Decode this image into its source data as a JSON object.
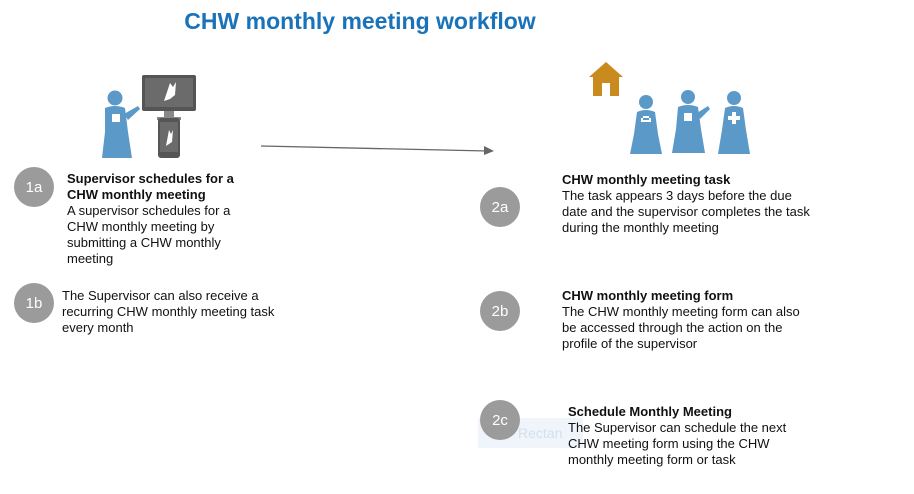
{
  "title": "CHW monthly meeting workflow",
  "steps": {
    "s1a": {
      "badge": "1a",
      "heading": "Supervisor schedules for a CHW monthly meeting",
      "text": "A supervisor schedules for a CHW monthly meeting by submitting a CHW monthly meeting"
    },
    "s1b": {
      "badge": "1b",
      "text": "The Supervisor can also receive a recurring CHW monthly meeting task every month"
    },
    "s2a": {
      "badge": "2a",
      "heading": "CHW monthly meeting task",
      "text": "The task appears 3 days before the due date and the supervisor completes the task during the monthly meeting"
    },
    "s2b": {
      "badge": "2b",
      "heading": "CHW monthly meeting form",
      "text": "The CHW monthly meeting form can also be accessed through the action on the profile of the supervisor"
    },
    "s2c": {
      "badge": "2c",
      "heading": "Schedule Monthly Meeting",
      "text": "The Supervisor can schedule the next CHW meeting form using the CHW monthly meeting form or task"
    }
  },
  "ghost_label": "Rectan",
  "icons": [
    "supervisor-person-icon",
    "computer-monitor-icon",
    "mobile-phone-icon",
    "house-icon",
    "chw-person-icon"
  ],
  "colors": {
    "title": "#1a73b8",
    "person": "#5b9ac8",
    "house": "#c98a1e",
    "badge": "#9b9b9b",
    "device": "#555555"
  }
}
